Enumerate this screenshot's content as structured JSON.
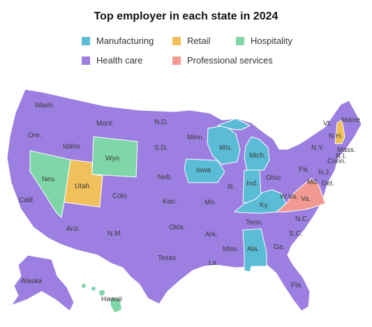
{
  "title": "Top employer in each state in 2024",
  "colors": {
    "manufacturing": "#5bbcd6",
    "retail": "#f0c05a",
    "hospitality": "#7fd6a8",
    "health_care": "#9c7fe0",
    "professional_services": "#f29a92"
  },
  "legend": {
    "manufacturing": "Manufacturing",
    "retail": "Retail",
    "hospitality": "Hospitality",
    "health_care": "Health care",
    "professional_services": "Professional services"
  },
  "labels": {
    "wash": "Wash.",
    "ore": "Ore.",
    "idaho": "Idaho",
    "mont": "Mont.",
    "wyo": "Wyo.",
    "nev": "Nev.",
    "utah": "Utah",
    "calif": "Calif.",
    "ariz": "Ariz.",
    "colo": "Colo.",
    "nm": "N.M.",
    "nd": "N.D.",
    "sd": "S.D.",
    "neb": "Neb.",
    "kan": "Kan.",
    "okla": "Okla.",
    "texas": "Texas",
    "minn": "Minn.",
    "iowa": "Iowa",
    "mo": "Mo.",
    "ark": "Ark.",
    "la": "La.",
    "wis": "Wis.",
    "ill": "Ill.",
    "mich": "Mich.",
    "ind": "Ind.",
    "ohio": "Ohio",
    "ky": "Ky.",
    "tenn": "Tenn.",
    "miss": "Miss.",
    "ala": "Ala.",
    "ga": "Ga.",
    "fla": "Fla.",
    "sc": "S.C.",
    "nc": "N.C.",
    "va": "Va.",
    "wva": "W.Va.",
    "pa": "Pa.",
    "ny": "N.Y.",
    "nj": "N.J.",
    "md": "Md.",
    "del": "Del.",
    "conn": "Conn.",
    "ri": "R.I.",
    "mass": "Mass.",
    "vt": "Vt.",
    "nh": "N.H.",
    "maine": "Maine",
    "alaska": "Alaska",
    "hawaii": "Hawaii"
  }
}
